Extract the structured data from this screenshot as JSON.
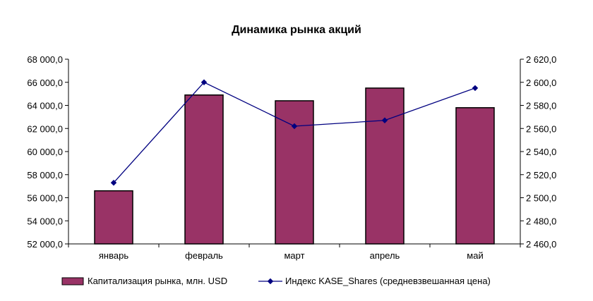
{
  "chart_data": {
    "type": "bar+line",
    "title": "Динамика рынка акций",
    "categories": [
      "январь",
      "февраль",
      "март",
      "апрель",
      "май"
    ],
    "series": [
      {
        "name": "Капитализация рынка, млн. USD",
        "kind": "bar",
        "axis": "left",
        "color": "#993366",
        "values": [
          56600,
          64900,
          64400,
          65500,
          63800
        ]
      },
      {
        "name": "Индекс KASE_Shares (средневзвешанная цена)",
        "kind": "line",
        "axis": "right",
        "color": "#000080",
        "values": [
          2513,
          2600,
          2562,
          2567,
          2595
        ]
      }
    ],
    "left_axis": {
      "ylim": [
        52000,
        68000
      ],
      "ticks": [
        "52 000,0",
        "54 000,0",
        "56 000,0",
        "58 000,0",
        "60 000,0",
        "62 000,0",
        "64 000,0",
        "66 000,0",
        "68 000,0"
      ]
    },
    "right_axis": {
      "ylim": [
        2460,
        2620
      ],
      "ticks": [
        "2 460,0",
        "2 480,0",
        "2 500,0",
        "2 520,0",
        "2 540,0",
        "2 560,0",
        "2 580,0",
        "2 600,0",
        "2 620,0"
      ]
    },
    "grid": false,
    "legend": "bottom"
  }
}
